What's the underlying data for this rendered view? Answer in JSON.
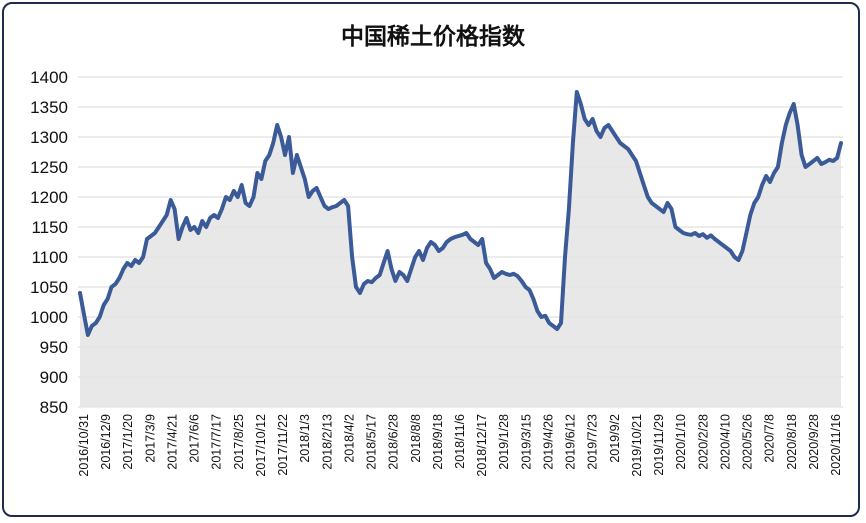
{
  "chart_data": {
    "type": "area",
    "title": "中国稀土价格指数",
    "xlabel": "",
    "ylabel": "",
    "ylim": [
      850,
      1400
    ],
    "yticks": [
      850,
      900,
      950,
      1000,
      1050,
      1100,
      1150,
      1200,
      1250,
      1300,
      1350,
      1400
    ],
    "grid": true,
    "colors": {
      "line": "#3b5a98",
      "fill": "#e4e4e4",
      "grid": "#d9d9d9"
    },
    "x_tick_labels": [
      "2016/10/31",
      "2016/12/9",
      "2017/1/20",
      "2017/3/9",
      "2017/4/21",
      "2017/6/6",
      "2017/7/17",
      "2017/8/25",
      "2017/10/12",
      "2017/11/22",
      "2018/1/3",
      "2018/2/13",
      "2018/4/2",
      "2018/5/17",
      "2018/6/28",
      "2018/8/8",
      "2018/9/18",
      "2018/11/6",
      "2018/12/17",
      "2019/1/28",
      "2019/3/15",
      "2019/4/26",
      "2019/6/12",
      "2019/7/23",
      "2019/9/2",
      "2019/10/21",
      "2019/11/29",
      "2020/1/10",
      "2020/2/28",
      "2020/4/10",
      "2020/5/26",
      "2020/7/8",
      "2020/8/18",
      "2020/9/28",
      "2020/11/16"
    ],
    "series": [
      {
        "values": [
          1040,
          1005,
          970,
          985,
          990,
          1000,
          1020,
          1030,
          1050,
          1055,
          1065,
          1080,
          1090,
          1085,
          1095,
          1090,
          1100,
          1130,
          1135,
          1140,
          1150,
          1160,
          1170,
          1195,
          1180,
          1130,
          1150,
          1165,
          1145,
          1150,
          1140,
          1160,
          1150,
          1165,
          1170,
          1165,
          1180,
          1200,
          1195,
          1210,
          1200,
          1220,
          1190,
          1185,
          1200,
          1240,
          1230,
          1260,
          1270,
          1290,
          1320,
          1300,
          1270,
          1300,
          1240,
          1270,
          1250,
          1230,
          1200,
          1210,
          1215,
          1200,
          1185,
          1180,
          1183,
          1185,
          1190,
          1195,
          1185,
          1100,
          1050,
          1040,
          1055,
          1060,
          1058,
          1065,
          1070,
          1090,
          1110,
          1080,
          1060,
          1075,
          1070,
          1060,
          1080,
          1100,
          1110,
          1095,
          1115,
          1125,
          1120,
          1110,
          1115,
          1125,
          1130,
          1133,
          1135,
          1137,
          1140,
          1130,
          1125,
          1120,
          1130,
          1090,
          1080,
          1065,
          1070,
          1075,
          1072,
          1070,
          1072,
          1068,
          1060,
          1050,
          1045,
          1030,
          1010,
          1000,
          1002,
          990,
          985,
          980,
          990,
          1100,
          1180,
          1290,
          1375,
          1355,
          1330,
          1320,
          1330,
          1310,
          1300,
          1315,
          1320,
          1310,
          1300,
          1290,
          1285,
          1280,
          1270,
          1260,
          1240,
          1220,
          1200,
          1190,
          1185,
          1180,
          1175,
          1190,
          1180,
          1150,
          1145,
          1140,
          1138,
          1137,
          1140,
          1135,
          1138,
          1132,
          1136,
          1130,
          1125,
          1120,
          1115,
          1110,
          1100,
          1095,
          1110,
          1140,
          1170,
          1190,
          1200,
          1220,
          1235,
          1225,
          1240,
          1250,
          1290,
          1320,
          1340,
          1355,
          1320,
          1270,
          1250,
          1255,
          1260,
          1265,
          1255,
          1258,
          1262,
          1260,
          1265,
          1290
        ]
      }
    ]
  }
}
